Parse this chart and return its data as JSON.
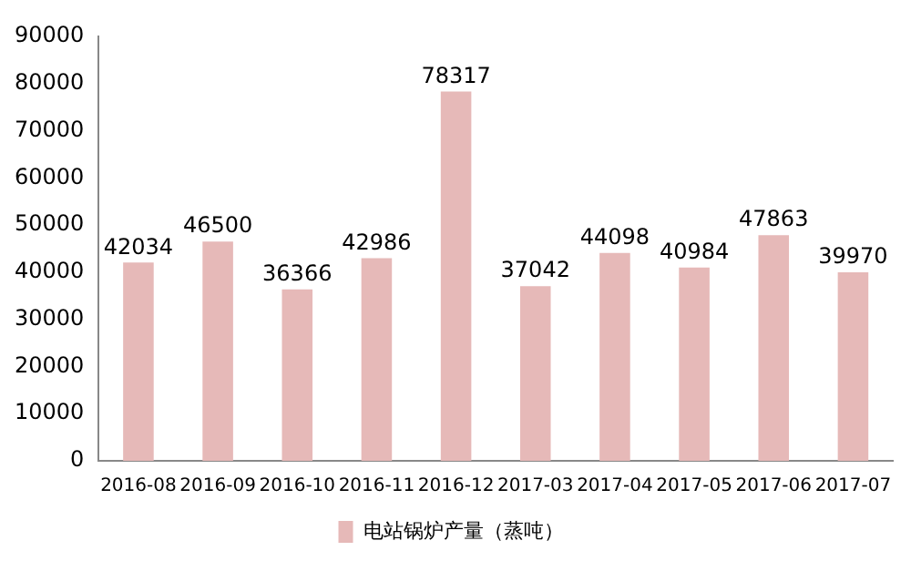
{
  "chart_data": {
    "type": "bar",
    "categories": [
      "2016-08",
      "2016-09",
      "2016-10",
      "2016-11",
      "2016-12",
      "2017-03",
      "2017-04",
      "2017-05",
      "2017-06",
      "2017-07"
    ],
    "series": [
      {
        "name": "电站锅炉产量（蒸吨）",
        "color": "#e6b9b8",
        "values": [
          42034,
          46500,
          36366,
          42986,
          78317,
          37042,
          44098,
          40984,
          47863,
          39970
        ]
      }
    ],
    "ylim": [
      0,
      90000
    ],
    "yticks": [
      0,
      10000,
      20000,
      30000,
      40000,
      50000,
      60000,
      70000,
      80000,
      90000
    ],
    "grid": false,
    "legend": "bottom",
    "data_labels": true
  }
}
